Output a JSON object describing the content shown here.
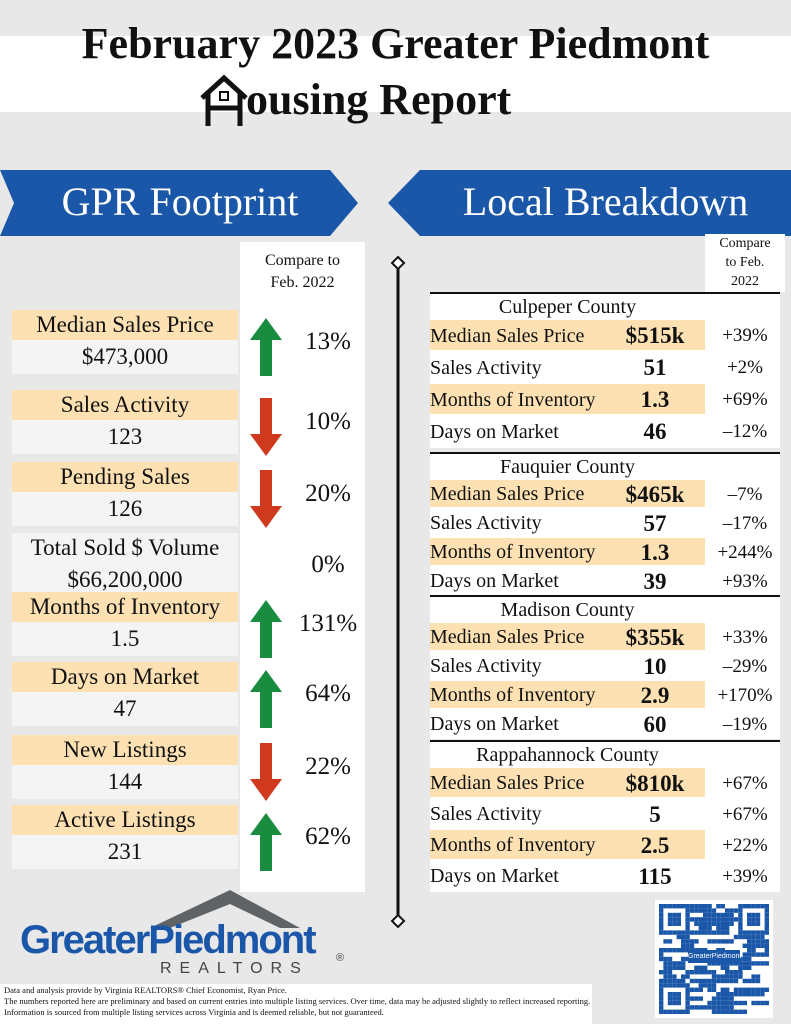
{
  "header": {
    "title_line1": "February 2023 Greater Piedmont",
    "title_line2": "ousing Report"
  },
  "left": {
    "heading": "GPR Footprint",
    "compare_label": "Compare to Feb. 2022",
    "metrics": [
      {
        "label": "Median Sales Price",
        "value": "$473,000",
        "change": "13%",
        "trend": "up"
      },
      {
        "label": "Sales Activity",
        "value": "123",
        "change": "10%",
        "trend": "down"
      },
      {
        "label": "Pending Sales",
        "value": "126",
        "change": "20%",
        "trend": "down"
      },
      {
        "label": "Total Sold $ Volume",
        "value": "$66,200,000",
        "change": "0%"
      },
      {
        "label": "Months of Inventory",
        "value": "1.5",
        "change": "131%",
        "trend": "up"
      },
      {
        "label": "Days on Market",
        "value": "47",
        "change": "64%",
        "trend": "up"
      },
      {
        "label": "New Listings",
        "value": "144",
        "change": "22%",
        "trend": "down"
      },
      {
        "label": "Active Listings",
        "value": "231",
        "change": "62%",
        "trend": "up"
      }
    ]
  },
  "right": {
    "heading": "Local Breakdown",
    "compare_label": "Compare to Feb. 2022",
    "counties": [
      {
        "name": "Culpeper County",
        "rows": [
          [
            "Median Sales Price",
            "$515k",
            "+39%"
          ],
          [
            "Sales Activity",
            "51",
            "+2%"
          ],
          [
            "Months of Inventory",
            "1.3",
            "+69%"
          ],
          [
            "Days on Market",
            "46",
            "–12%"
          ]
        ]
      },
      {
        "name": "Fauquier County",
        "rows": [
          [
            "Median Sales Price",
            "$465k",
            "–7%"
          ],
          [
            "Sales Activity",
            "57",
            "–17%"
          ],
          [
            "Months of Inventory",
            "1.3",
            "+244%"
          ],
          [
            "Days on Market",
            "39",
            "+93%"
          ]
        ]
      },
      {
        "name": "Madison County",
        "rows": [
          [
            "Median Sales Price",
            "$355k",
            "+33%"
          ],
          [
            "Sales Activity",
            "10",
            "–29%"
          ],
          [
            "Months of Inventory",
            "2.9",
            "+170%"
          ],
          [
            "Days on Market",
            "60",
            "–19%"
          ]
        ]
      },
      {
        "name": "Rappahannock County",
        "rows": [
          [
            "Median Sales Price",
            "$810k",
            "+67%"
          ],
          [
            "Sales Activity",
            "5",
            "+67%"
          ],
          [
            "Months of Inventory",
            "2.5",
            "+22%"
          ],
          [
            "Days on Market",
            "115",
            "+39%"
          ]
        ]
      }
    ]
  },
  "footer": {
    "logo_name": "GreaterPiedmont",
    "logo_sub": "REALTORS",
    "logo_mark": "®",
    "qr_label": "GreaterPiedmont",
    "disclaimer": [
      "Data and analysis provide by Virginia REALTORS® Chief Economist, Ryan Price.",
      "The numbers reported here are preliminary and based on current entries into multiple listing services. Over time, data may be adjusted slightly to reflect increased reporting. Information is sourced from multiple listing services across Virginia and is deemed reliable, but not guaranteed."
    ]
  }
}
